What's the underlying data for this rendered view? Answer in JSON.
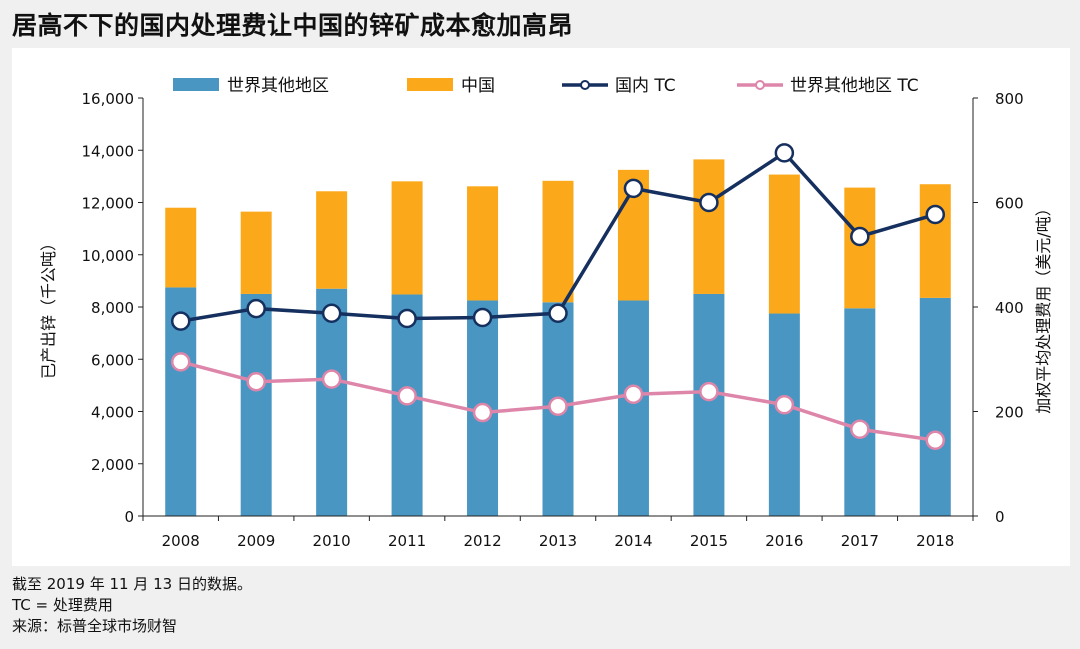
{
  "header": {
    "title": "居高不下的国内处理费让中国的锌矿成本愈加高昂"
  },
  "footer": {
    "note1": "截至 2019 年 11 月 13 日的数据。",
    "note2": "TC = 处理费用",
    "note3": "来源：标普全球市场财智"
  },
  "colors": {
    "rest_of_world_bar": "#4a96c3",
    "china_bar": "#fba91a",
    "domestic_tc_line": "#152f5e",
    "world_tc_line": "#de86aa"
  },
  "chart_data": {
    "type": "bar",
    "subtype": "stacked bar with dual-axis lines",
    "categories": [
      "2008",
      "2009",
      "2010",
      "2011",
      "2012",
      "2013",
      "2014",
      "2015",
      "2016",
      "2017",
      "2018"
    ],
    "series": [
      {
        "name": "世界其他地区",
        "kind": "bar",
        "axis": "left",
        "values": [
          8750,
          8500,
          8700,
          8480,
          8250,
          8180,
          8250,
          8500,
          7750,
          7950,
          8350
        ]
      },
      {
        "name": "中国",
        "kind": "bar",
        "axis": "left",
        "values": [
          3050,
          3150,
          3730,
          4330,
          4370,
          4650,
          5000,
          5150,
          5320,
          4620,
          4350
        ]
      },
      {
        "name": "国内 TC",
        "kind": "line",
        "axis": "right",
        "values": [
          373,
          397,
          388,
          378,
          380,
          388,
          627,
          600,
          695,
          535,
          577
        ]
      },
      {
        "name": "世界其他地区 TC",
        "kind": "line",
        "axis": "right",
        "values": [
          295,
          257,
          262,
          230,
          198,
          210,
          233,
          238,
          213,
          166,
          145
        ]
      }
    ],
    "ylabel": "已产出锌（千公吨）",
    "y2label": "加权平均处理费用（美元/吨）",
    "ylim": [
      0,
      16000
    ],
    "y2lim": [
      0,
      800
    ],
    "yticks": [
      "0",
      "2,000",
      "4,000",
      "6,000",
      "8,000",
      "10,000",
      "12,000",
      "14,000",
      "16,000"
    ],
    "y2ticks": [
      "0",
      "200",
      "400",
      "600",
      "800"
    ],
    "legend": "top",
    "grid": false
  }
}
